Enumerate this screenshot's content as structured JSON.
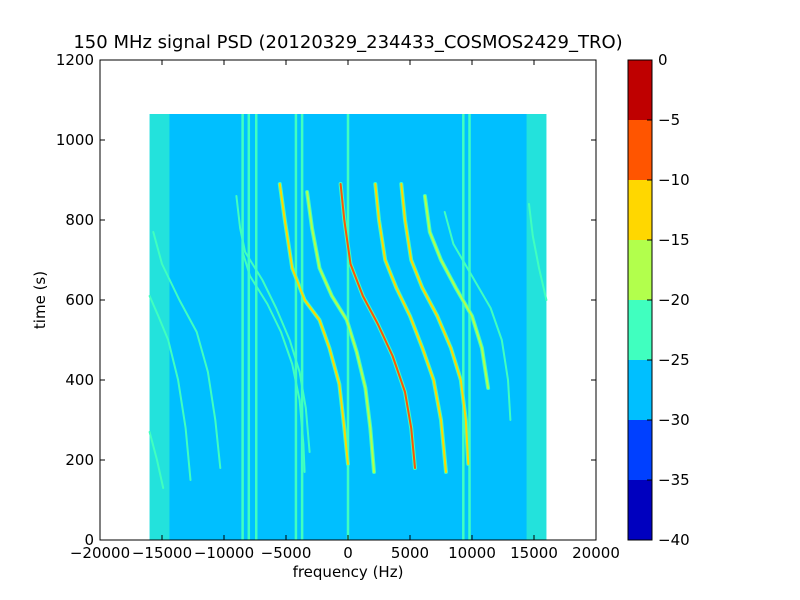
{
  "chart_data": {
    "type": "heatmap",
    "title": "150 MHz signal PSD (20120329_234433_COSMOS2429_TRO)",
    "xlabel": "frequency (Hz)",
    "ylabel": "time (s)",
    "xlim": [
      -20000,
      20000
    ],
    "ylim": [
      0,
      1200
    ],
    "xticks": [
      -20000,
      -15000,
      -10000,
      -5000,
      0,
      5000,
      10000,
      15000,
      20000
    ],
    "xtick_labels": [
      "−20000",
      "−15000",
      "−10000",
      "−5000",
      "0",
      "5000",
      "10000",
      "15000",
      "20000"
    ],
    "yticks": [
      0,
      200,
      400,
      600,
      800,
      1000,
      1200
    ],
    "ytick_labels": [
      "0",
      "200",
      "400",
      "600",
      "800",
      "1000",
      "1200"
    ],
    "data_extent": {
      "freq": [
        -16000,
        16000
      ],
      "time": [
        0,
        1065
      ]
    },
    "background_level": -28,
    "edge_level": -23,
    "colorbar": {
      "levels": [
        -40,
        -35,
        -30,
        -25,
        -20,
        -15,
        -10,
        -5,
        0
      ],
      "tick_labels": [
        "−40",
        "−35",
        "−30",
        "−25",
        "−20",
        "−15",
        "−10",
        "−5",
        "0"
      ],
      "colors": [
        "#0000bf",
        "#0040ff",
        "#00bfff",
        "#40ffbf",
        "#b2ff4c",
        "#ffd700",
        "#ff5500",
        "#bf0000"
      ]
    },
    "vertical_lines": [
      {
        "freq": -8500,
        "level": -23
      },
      {
        "freq": -8000,
        "level": -22
      },
      {
        "freq": -7400,
        "level": -23
      },
      {
        "freq": -4200,
        "level": -22
      },
      {
        "freq": -3700,
        "level": -22
      },
      {
        "freq": 0,
        "level": -23
      },
      {
        "freq": 9300,
        "level": -22
      },
      {
        "freq": 9800,
        "level": -22
      }
    ],
    "traces": [
      {
        "level": -22,
        "points": [
          [
            -16000,
            610
          ],
          [
            -15300,
            560
          ],
          [
            -14500,
            500
          ],
          [
            -13700,
            400
          ],
          [
            -13100,
            280
          ],
          [
            -12700,
            150
          ]
        ]
      },
      {
        "level": -21,
        "points": [
          [
            -15700,
            770
          ],
          [
            -15000,
            690
          ],
          [
            -13600,
            600
          ],
          [
            -12200,
            520
          ],
          [
            -11300,
            420
          ],
          [
            -10700,
            300
          ],
          [
            -10300,
            180
          ]
        ]
      },
      {
        "level": -23,
        "points": [
          [
            -16000,
            270
          ],
          [
            -15400,
            200
          ],
          [
            -14900,
            130
          ]
        ]
      },
      {
        "level": -21,
        "points": [
          [
            -9000,
            860
          ],
          [
            -8700,
            780
          ],
          [
            -8300,
            720
          ],
          [
            -6900,
            650
          ],
          [
            -5800,
            580
          ],
          [
            -4700,
            500
          ],
          [
            -3900,
            420
          ],
          [
            -3400,
            330
          ],
          [
            -3100,
            220
          ]
        ]
      },
      {
        "level": -21,
        "points": [
          [
            -8500,
            720
          ],
          [
            -7900,
            660
          ],
          [
            -6500,
            590
          ],
          [
            -5400,
            520
          ],
          [
            -4500,
            440
          ],
          [
            -3900,
            350
          ],
          [
            -3600,
            240
          ],
          [
            -3500,
            170
          ]
        ]
      },
      {
        "level": -13,
        "points": [
          [
            -5500,
            890
          ],
          [
            -5100,
            800
          ],
          [
            -4500,
            680
          ],
          [
            -3500,
            600
          ],
          [
            -2300,
            550
          ],
          [
            -1500,
            480
          ],
          [
            -700,
            390
          ],
          [
            -300,
            280
          ],
          [
            0,
            190
          ]
        ]
      },
      {
        "level": -15,
        "points": [
          [
            -3300,
            870
          ],
          [
            -2900,
            780
          ],
          [
            -2300,
            680
          ],
          [
            -1300,
            610
          ],
          [
            -100,
            550
          ],
          [
            700,
            470
          ],
          [
            1400,
            380
          ],
          [
            1800,
            280
          ],
          [
            2100,
            170
          ]
        ]
      },
      {
        "level": -8,
        "points": [
          [
            -600,
            890
          ],
          [
            -300,
            800
          ],
          [
            200,
            690
          ],
          [
            1200,
            610
          ],
          [
            2400,
            540
          ],
          [
            3600,
            460
          ],
          [
            4600,
            370
          ],
          [
            5100,
            280
          ],
          [
            5400,
            180
          ]
        ]
      },
      {
        "level": -12,
        "points": [
          [
            2200,
            890
          ],
          [
            2500,
            800
          ],
          [
            3000,
            700
          ],
          [
            3900,
            630
          ],
          [
            5000,
            560
          ],
          [
            6000,
            480
          ],
          [
            6900,
            400
          ],
          [
            7500,
            300
          ],
          [
            7900,
            170
          ]
        ]
      },
      {
        "level": -13,
        "points": [
          [
            4300,
            890
          ],
          [
            4600,
            800
          ],
          [
            5100,
            700
          ],
          [
            6000,
            630
          ],
          [
            7200,
            560
          ],
          [
            8300,
            480
          ],
          [
            9100,
            400
          ],
          [
            9500,
            300
          ],
          [
            9700,
            190
          ]
        ]
      },
      {
        "level": -15,
        "points": [
          [
            6200,
            860
          ],
          [
            6600,
            770
          ],
          [
            7500,
            700
          ],
          [
            8700,
            630
          ],
          [
            10000,
            560
          ],
          [
            10800,
            480
          ],
          [
            11300,
            380
          ]
        ]
      },
      {
        "level": -22,
        "points": [
          [
            7800,
            820
          ],
          [
            8500,
            740
          ],
          [
            10000,
            660
          ],
          [
            11500,
            580
          ],
          [
            12400,
            500
          ],
          [
            12900,
            400
          ],
          [
            13100,
            300
          ]
        ]
      },
      {
        "level": -22,
        "points": [
          [
            14600,
            840
          ],
          [
            14900,
            760
          ],
          [
            15400,
            680
          ],
          [
            16000,
            600
          ]
        ]
      }
    ]
  }
}
